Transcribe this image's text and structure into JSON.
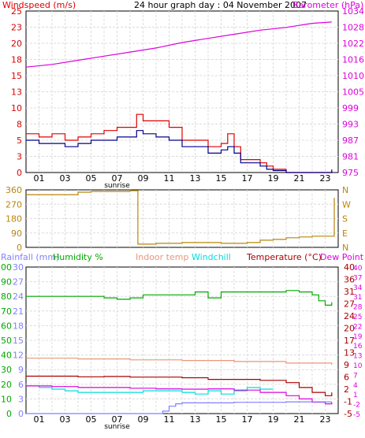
{
  "chart_data": [
    {
      "type": "line",
      "title": "24 hour graph day : 04 November 2007",
      "left_axis_label": "Windspeed (m/s)",
      "right_axis_label": "Barometer (hPa)",
      "x_ticks": [
        "01",
        "03",
        "05",
        "07",
        "09",
        "11",
        "13",
        "15",
        "17",
        "19",
        "21",
        "23"
      ],
      "x_marker": "sunrise",
      "left_ticks": [
        "0",
        "3",
        "5",
        "8",
        "10",
        "13",
        "15",
        "18",
        "20",
        "23",
        "25"
      ],
      "right_ticks": [
        "975",
        "981",
        "987",
        "993",
        "999",
        "1005",
        "1010",
        "1016",
        "1022",
        "1028",
        "1034"
      ],
      "ylim_left": [
        0,
        25
      ],
      "ylim_right": [
        975,
        1034
      ],
      "grid": true,
      "colors": {
        "wind": "#dd0000",
        "gust_avg": "#00008b",
        "barometer": "#dd00dd"
      },
      "series": [
        {
          "axis": "right",
          "color": "#dd00dd",
          "x": [
            0,
            2,
            4,
            6,
            8,
            10,
            12,
            14,
            16,
            18,
            20,
            22,
            23.5
          ],
          "values": [
            1013.5,
            1014.5,
            1016,
            1017.5,
            1019,
            1020.5,
            1022.5,
            1024,
            1025.5,
            1027,
            1028,
            1029.5,
            1030
          ]
        },
        {
          "axis": "left",
          "color": "#dd0000",
          "x": [
            0,
            1,
            2,
            3,
            4,
            5,
            6,
            7,
            8,
            8.5,
            9,
            10,
            11,
            12,
            13,
            14,
            15,
            15.5,
            16,
            16.5,
            17,
            18,
            18.5,
            19,
            20,
            21,
            22,
            23,
            23.5
          ],
          "values": [
            6,
            5.5,
            6,
            5,
            5.5,
            6,
            6.5,
            7,
            7,
            9,
            8,
            8,
            7,
            5,
            5,
            4,
            4.5,
            6,
            4,
            2,
            2,
            1.5,
            1,
            0.5,
            0,
            0,
            0,
            0,
            0.5
          ]
        },
        {
          "axis": "left",
          "color": "#00008b",
          "x": [
            0,
            1,
            2,
            3,
            4,
            5,
            6,
            7,
            8,
            8.5,
            9,
            10,
            11,
            12,
            13,
            14,
            15,
            15.5,
            16,
            16.5,
            17,
            18,
            18.5,
            19,
            20,
            21,
            22,
            23,
            23.5
          ],
          "values": [
            5,
            4.5,
            4.5,
            4,
            4.5,
            5,
            5,
            5.5,
            5.5,
            6.5,
            6,
            5.5,
            5,
            4,
            4,
            3,
            3.5,
            4,
            3,
            1.5,
            1.5,
            1,
            0.5,
            0.3,
            0,
            0,
            0,
            0,
            0.3
          ]
        }
      ]
    },
    {
      "type": "line",
      "left_ticks": [
        "0",
        "90",
        "180",
        "270",
        "360"
      ],
      "right_ticks": [
        "N",
        "E",
        "S",
        "W",
        "N"
      ],
      "ylim": [
        0,
        360
      ],
      "grid": true,
      "series": [
        {
          "color": "#b8860b",
          "x": [
            0,
            2,
            3,
            4,
            5,
            6,
            7,
            8,
            8.4,
            8.6,
            9,
            10,
            12,
            14,
            15,
            16,
            17,
            18,
            19,
            20,
            21,
            22,
            23,
            23.5,
            23.7
          ],
          "values": [
            330,
            330,
            330,
            345,
            350,
            350,
            350,
            355,
            355,
            20,
            20,
            25,
            30,
            30,
            25,
            25,
            30,
            45,
            50,
            60,
            65,
            70,
            70,
            70,
            310
          ]
        }
      ]
    },
    {
      "type": "line",
      "legend": [
        "Rainfall (mm)",
        "Humidity %",
        "Indoor temp",
        "Windchill",
        "Temperature (°C)",
        "Dew Point"
      ],
      "legend_colors": [
        "#8080ff",
        "#00aa00",
        "#e9967a",
        "#00dddd",
        "#aa0000",
        "#dd00dd"
      ],
      "x_ticks": [
        "01",
        "03",
        "05",
        "07",
        "09",
        "11",
        "13",
        "15",
        "17",
        "19",
        "21",
        "23"
      ],
      "x_marker": "sunrise",
      "left_ticks_rain": [
        "0",
        "3",
        "6",
        "9",
        "12",
        "15",
        "18",
        "21",
        "24",
        "27",
        "30"
      ],
      "left_ticks_humidity": [
        "0",
        "10",
        "20",
        "30",
        "40",
        "50",
        "60",
        "70",
        "80",
        "90",
        "100"
      ],
      "right_ticks_temp": [
        "-5",
        "-1",
        "2",
        "6",
        "9",
        "13",
        "17",
        "20",
        "24",
        "27",
        "31",
        "36",
        "40"
      ],
      "right_ticks_temp2": [
        "-5",
        "-2",
        "1",
        "4",
        "7",
        "10",
        "13",
        "16",
        "19",
        "22",
        "25",
        "28",
        "31",
        "34",
        "37",
        "40"
      ],
      "ylim_humidity": [
        0,
        100
      ],
      "ylim_temp": [
        -5,
        40
      ],
      "grid": true,
      "series": [
        {
          "color": "#00aa00",
          "axis": "humidity",
          "x": [
            0,
            2,
            4,
            6,
            7,
            8,
            9,
            10,
            12,
            13,
            14,
            15,
            16,
            18,
            20,
            21,
            22,
            22.5,
            23,
            23.5
          ],
          "values": [
            80,
            80,
            80,
            79,
            78,
            79,
            81,
            81,
            81,
            83,
            79,
            83,
            83,
            83,
            84,
            83,
            81,
            77,
            74,
            76
          ]
        },
        {
          "color": "#e9967a",
          "axis": "temp",
          "x": [
            0,
            4,
            8,
            12,
            16,
            20,
            23.5
          ],
          "values": [
            12,
            11.8,
            11.5,
            11.3,
            11,
            10.5,
            10
          ]
        },
        {
          "color": "#aa0000",
          "axis": "temp",
          "x": [
            0,
            2,
            4,
            6,
            8,
            10,
            12,
            14,
            16,
            18,
            20,
            21,
            22,
            23,
            23.5
          ],
          "values": [
            6.5,
            6.5,
            6.3,
            6.4,
            6.2,
            6.2,
            6,
            5.5,
            5.5,
            5.2,
            4.5,
            3,
            1.5,
            0.5,
            1.5
          ]
        },
        {
          "color": "#00dddd",
          "axis": "temp",
          "x": [
            0,
            1,
            2,
            3,
            4,
            5,
            6,
            7,
            8,
            9,
            10,
            11,
            12,
            13,
            14,
            15,
            16,
            17,
            18,
            19
          ],
          "values": [
            3.5,
            3,
            2.5,
            2,
            1.5,
            1.5,
            1.5,
            1.5,
            1.5,
            2,
            2,
            2,
            1.5,
            1,
            2,
            1,
            2,
            3,
            2.5,
            2.5
          ]
        },
        {
          "color": "#dd00dd",
          "axis": "temp",
          "x": [
            0,
            2,
            4,
            6,
            8,
            10,
            12,
            14,
            16,
            18,
            20,
            21,
            22,
            23,
            23.5
          ],
          "values": [
            3.5,
            3.3,
            3,
            3,
            2.8,
            2.6,
            2.5,
            2.6,
            2.2,
            1.5,
            0.5,
            -0.5,
            -1.5,
            -2,
            -1.5
          ]
        },
        {
          "color": "#8080ff",
          "axis": "rain",
          "x": [
            0,
            5,
            9.5,
            10.5,
            11,
            11.5,
            12,
            16,
            20,
            23.5
          ],
          "values": [
            0,
            0,
            0,
            0.5,
            1.5,
            2,
            2.2,
            2.3,
            2.4,
            2.4
          ]
        }
      ]
    }
  ]
}
